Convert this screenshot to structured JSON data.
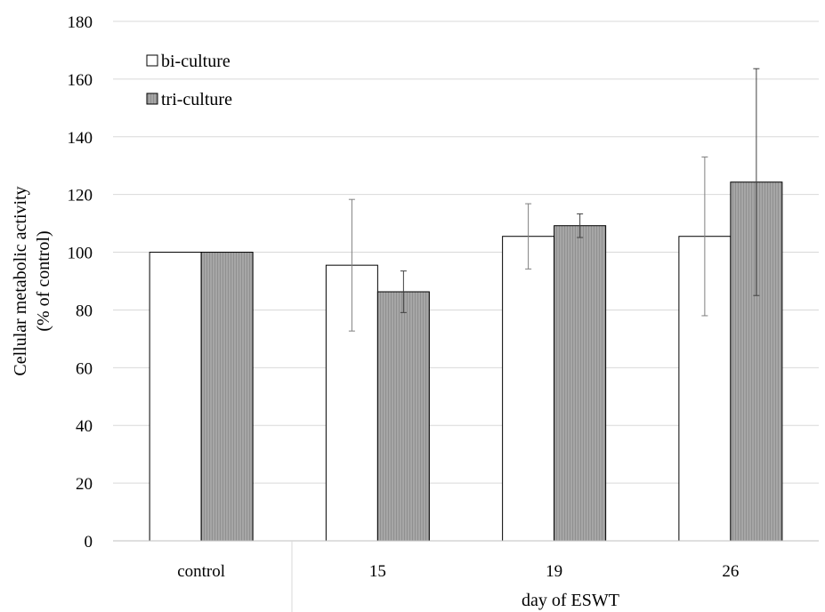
{
  "chart_data": {
    "type": "bar",
    "categories": [
      "control",
      "15",
      "19",
      "26"
    ],
    "category_group_label": "day of ESWT",
    "series": [
      {
        "name": "bi-culture",
        "color": "#ffffff",
        "values": [
          100,
          95.5,
          105.5,
          105.5
        ],
        "error": [
          0,
          22.8,
          11.3,
          27.5
        ]
      },
      {
        "name": "tri-culture",
        "color": "#a6a6a6",
        "values": [
          100,
          86.3,
          109.2,
          124.3
        ],
        "error": [
          0,
          7.2,
          4.1,
          39.3
        ]
      }
    ],
    "ylabel_line1": "Cellular metabolic activity",
    "ylabel_line2": "(% of control)",
    "xlabel": "day of ESWT",
    "ylim": [
      0,
      180
    ],
    "yticks": [
      0,
      20,
      40,
      60,
      80,
      100,
      120,
      140,
      160,
      180
    ],
    "grid": true,
    "legend_position": "top-left"
  }
}
